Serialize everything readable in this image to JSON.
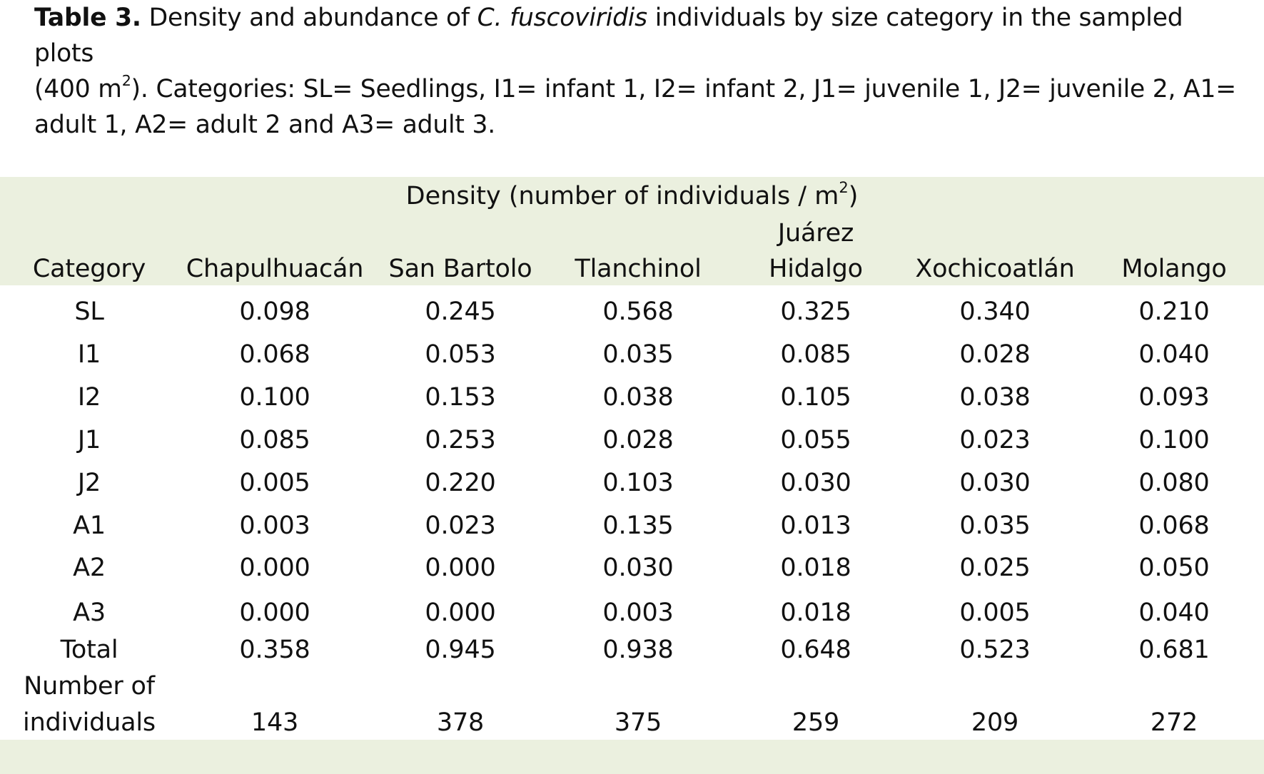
{
  "caption": {
    "label": "Table 3.",
    "text_before_species": " Density and abundance of ",
    "species": "C. fuscoviridis",
    "text_after_species_line": " individuals by size category in the sampled plots",
    "text_area_open": "(400 m",
    "text_area_sup": "2",
    "text_area_close": "). Categories: SL= Seedlings, I1= infant 1, I2= infant 2, J1= juvenile 1, J2= juvenile 2, A1= adult 1, A2= adult 2 and A3= adult 3."
  },
  "table": {
    "density_title_prefix": "Density (number of individuals / m",
    "density_title_sup": "2",
    "density_title_suffix": ")",
    "columns": [
      "Category",
      "Chapulhuacán",
      "San Bartolo",
      "Tlanchinol",
      "Juárez Hidalgo",
      "Xochicoatlán",
      "Molango"
    ],
    "juarez_line1": "Juárez",
    "juarez_line2": "Hidalgo",
    "rows": [
      {
        "category": "SL",
        "values": [
          "0.098",
          "0.245",
          "0.568",
          "0.325",
          "0.340",
          "0.210"
        ]
      },
      {
        "category": "I1",
        "values": [
          "0.068",
          "0.053",
          "0.035",
          "0.085",
          "0.028",
          "0.040"
        ]
      },
      {
        "category": "I2",
        "values": [
          "0.100",
          "0.153",
          "0.038",
          "0.105",
          "0.038",
          "0.093"
        ]
      },
      {
        "category": "J1",
        "values": [
          "0.085",
          "0.253",
          "0.028",
          "0.055",
          "0.023",
          "0.100"
        ]
      },
      {
        "category": "J2",
        "values": [
          "0.005",
          "0.220",
          "0.103",
          "0.030",
          "0.030",
          "0.080"
        ]
      },
      {
        "category": "A1",
        "values": [
          "0.003",
          "0.023",
          "0.135",
          "0.013",
          "0.035",
          "0.068"
        ]
      },
      {
        "category": "A2",
        "values": [
          "0.000",
          "0.000",
          "0.030",
          "0.018",
          "0.025",
          "0.050"
        ]
      },
      {
        "category": "A3",
        "values": [
          "0.000",
          "0.000",
          "0.003",
          "0.018",
          "0.005",
          "0.040"
        ]
      }
    ],
    "total": {
      "category": "Total",
      "values": [
        "0.358",
        "0.945",
        "0.938",
        "0.648",
        "0.523",
        "0.681"
      ]
    },
    "individuals": {
      "category_line1": "Number of",
      "category_line2": "individuals",
      "values": [
        "143",
        "378",
        "375",
        "259",
        "209",
        "272"
      ]
    }
  }
}
